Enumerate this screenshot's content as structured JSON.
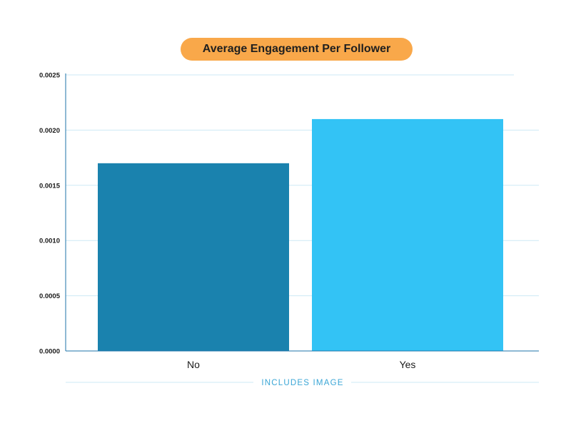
{
  "chart_data": {
    "type": "bar",
    "title": "Average Engagement Per Follower",
    "xlabel": "INCLUDES IMAGE",
    "ylabel": "",
    "categories": [
      "No",
      "Yes"
    ],
    "values": [
      0.0017,
      0.0021
    ],
    "ylim": [
      0,
      0.0025
    ],
    "yticks": [
      "0.0000",
      "0.0005",
      "0.0010",
      "0.0015",
      "0.0020",
      "0.0025"
    ],
    "grid": true,
    "legend": "none",
    "colors": [
      "#1a82ae",
      "#33c3f5"
    ]
  },
  "style": {
    "title_bg": "#f9a84a",
    "axis_color": "#1e73a8",
    "grid_color": "#cde9f5",
    "xaxis_title_color": "#3aa6d6"
  }
}
